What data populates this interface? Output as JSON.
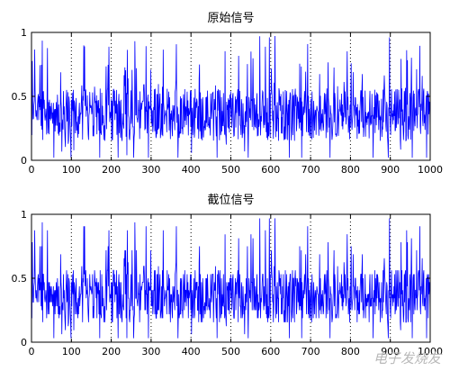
{
  "chart_data": [
    {
      "type": "line",
      "title": "原始信号",
      "xlabel": "",
      "ylabel": "",
      "xlim": [
        0,
        1000
      ],
      "ylim": [
        0,
        1
      ],
      "xticks": [
        "0",
        "100",
        "200",
        "300",
        "400",
        "500",
        "600",
        "700",
        "800",
        "900",
        "1000"
      ],
      "yticks": [
        "0",
        "0.5",
        "1"
      ],
      "grid_x": "dotted",
      "series": [
        {
          "color": "#0000ff",
          "x_range": [
            0,
            1000
          ],
          "y_range": [
            0.02,
            0.98
          ],
          "approx_mean": 0.37,
          "note_values": [
            0.32,
            0.48,
            0.21,
            0.55,
            0.38,
            0.29,
            0.62,
            0.35,
            0.41,
            0.27
          ]
        }
      ]
    },
    {
      "type": "line",
      "title": "截位信号",
      "xlabel": "",
      "ylabel": "",
      "xlim": [
        0,
        1000
      ],
      "ylim": [
        0,
        1
      ],
      "xticks": [
        "0",
        "100",
        "200",
        "300",
        "400",
        "500",
        "600",
        "700",
        "800",
        "900",
        "1000"
      ],
      "yticks": [
        "0",
        "0.5",
        "1"
      ],
      "grid_x": "dotted",
      "series": [
        {
          "color": "#0000ff",
          "x_range": [
            0,
            1000
          ],
          "y_range": [
            0.02,
            0.98
          ],
          "approx_mean": 0.37,
          "note_values": [
            0.32,
            0.48,
            0.21,
            0.55,
            0.38,
            0.29,
            0.62,
            0.35,
            0.41,
            0.27
          ]
        }
      ]
    }
  ],
  "watermark": "电子发烧友"
}
